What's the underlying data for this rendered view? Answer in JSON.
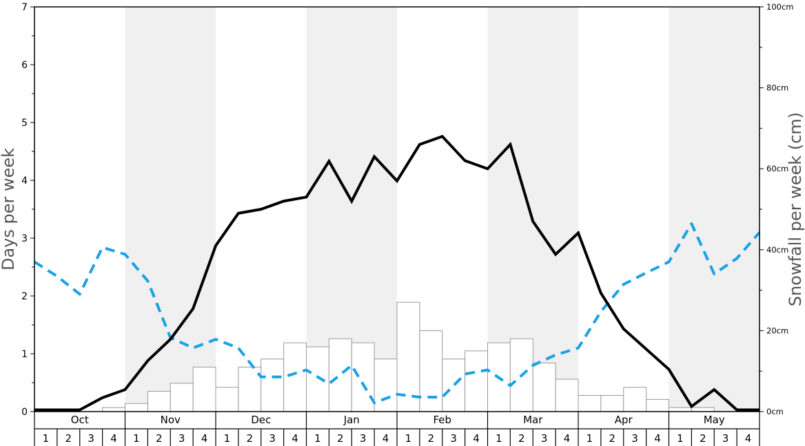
{
  "chart_data": {
    "type": "bar+line",
    "title": "",
    "ylabel_left": "Days per week",
    "ylabel_right": "Snowfall per week (cm)",
    "ylim_left": [
      0,
      7
    ],
    "ylim_right": [
      0,
      100
    ],
    "left_ticks": [
      "0",
      "1",
      "2",
      "3",
      "4",
      "5",
      "6",
      "7"
    ],
    "right_ticks": [
      "0cm",
      "20cm",
      "40cm",
      "60cm",
      "80cm",
      "100cm"
    ],
    "months": [
      "Oct",
      "Nov",
      "Dec",
      "Jan",
      "Feb",
      "Mar",
      "Apr",
      "May"
    ],
    "week_labels": [
      "1",
      "2",
      "3",
      "4"
    ],
    "colors": {
      "bars_fill": "#ffffff",
      "bars_stroke": "#999999",
      "days_line": "#000000",
      "dashed_line": "#1aa1e6",
      "shade": "#f0f0f0"
    },
    "snowfall_cm": [
      0,
      0,
      0,
      1,
      2,
      5,
      7,
      11,
      6,
      11,
      13,
      17,
      16,
      18,
      17,
      13,
      27,
      20,
      13,
      15,
      17,
      18,
      12,
      8,
      4,
      4,
      6,
      3,
      1,
      1,
      0,
      0
    ],
    "series": [
      {
        "values": [
          0.03,
          0.03,
          0.03,
          0.24,
          0.38,
          0.88,
          1.25,
          1.78,
          2.87,
          3.43,
          3.5,
          3.64,
          3.71,
          4.33,
          3.64,
          4.41,
          3.99,
          4.62,
          4.76,
          4.34,
          4.2,
          4.62,
          3.29,
          2.72,
          3.09,
          2.05,
          1.43,
          1.08,
          0.73,
          0.09,
          0.38,
          0.03,
          0.03
        ]
      },
      {
        "values": [
          2.59,
          2.34,
          2.03,
          2.84,
          2.72,
          2.26,
          1.28,
          1.1,
          1.25,
          1.1,
          0.6,
          0.6,
          0.72,
          0.48,
          0.8,
          0.15,
          0.3,
          0.25,
          0.25,
          0.65,
          0.72,
          0.45,
          0.8,
          0.98,
          1.1,
          1.73,
          2.2,
          2.4,
          2.59,
          3.25,
          2.38,
          2.65,
          3.1
        ]
      }
    ]
  }
}
